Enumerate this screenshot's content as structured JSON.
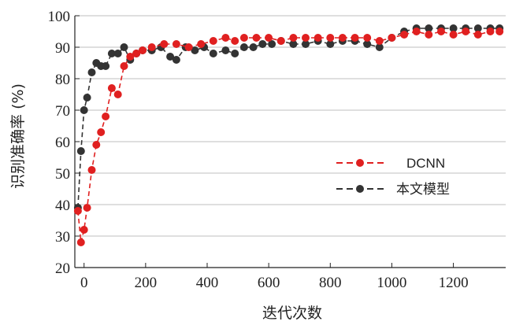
{
  "chart_data": {
    "type": "line",
    "title": "",
    "xlabel": "迭代次数",
    "ylabel": "识别准确率 (%)",
    "xlim": [
      -30,
      1370
    ],
    "ylim": [
      20,
      100
    ],
    "x_ticks": [
      "0",
      "200",
      "400",
      "600",
      "800",
      "1000",
      "1200"
    ],
    "y_ticks": [
      "20",
      "30",
      "40",
      "50",
      "60",
      "70",
      "80",
      "90",
      "100"
    ],
    "grid": "horizontal",
    "legend_position": "right",
    "series": [
      {
        "name": "DCNN",
        "color": "#e02020",
        "line_style": "dashed",
        "marker": "circle",
        "x": [
          -20,
          -10,
          0,
          10,
          25,
          40,
          55,
          70,
          90,
          110,
          130,
          150,
          170,
          190,
          220,
          260,
          300,
          340,
          380,
          420,
          460,
          490,
          520,
          560,
          600,
          640,
          680,
          720,
          760,
          800,
          840,
          880,
          920,
          960,
          1000,
          1040,
          1080,
          1120,
          1160,
          1200,
          1240,
          1280,
          1320,
          1350
        ],
        "y": [
          38,
          28,
          32,
          39,
          51,
          59,
          63,
          68,
          77,
          75,
          84,
          87,
          88,
          89,
          90,
          91,
          91,
          90,
          91,
          92,
          93,
          92,
          93,
          93,
          93,
          92,
          93,
          93,
          93,
          93,
          93,
          93,
          93,
          92,
          93,
          94,
          95,
          94,
          95,
          94,
          95,
          94,
          95,
          95
        ]
      },
      {
        "name": "本文模型",
        "color": "#333333",
        "line_style": "dashed",
        "marker": "circle",
        "x": [
          -20,
          -10,
          0,
          10,
          25,
          40,
          55,
          70,
          90,
          110,
          130,
          150,
          170,
          190,
          220,
          250,
          280,
          300,
          330,
          360,
          390,
          420,
          460,
          490,
          520,
          550,
          580,
          610,
          640,
          680,
          720,
          760,
          800,
          840,
          880,
          920,
          960,
          1000,
          1040,
          1080,
          1120,
          1160,
          1200,
          1240,
          1280,
          1320,
          1350
        ],
        "y": [
          39,
          57,
          70,
          74,
          82,
          85,
          84,
          84,
          88,
          88,
          90,
          86,
          88,
          89,
          89,
          90,
          87,
          86,
          90,
          89,
          90,
          88,
          89,
          88,
          90,
          90,
          91,
          91,
          92,
          91,
          91,
          92,
          91,
          92,
          92,
          91,
          90,
          93,
          95,
          96,
          96,
          96,
          96,
          96,
          96,
          96,
          96
        ]
      }
    ]
  }
}
